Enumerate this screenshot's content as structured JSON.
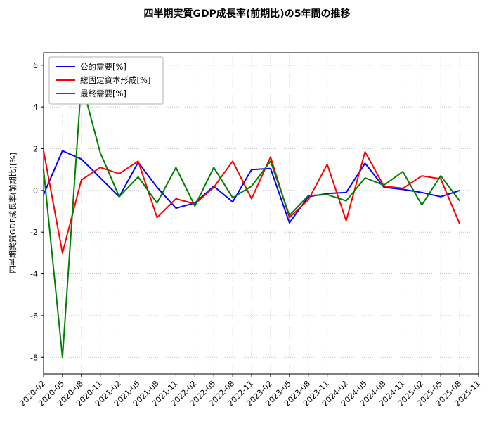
{
  "chart_data": {
    "type": "line",
    "title": "四半期実質GDP成長率(前期比)の5年間の推移",
    "xlabel": "",
    "ylabel": "四半期実質GDP成長率(前期比)[%]",
    "ylim": [
      -8.8,
      6.6
    ],
    "y_ticks": [
      6,
      4,
      2,
      0,
      -2,
      -4,
      -6,
      -8
    ],
    "grid": true,
    "legend_position": "upper left",
    "x_ticks": [
      "2020-02",
      "2020-05",
      "2020-08",
      "2020-11",
      "2021-02",
      "2021-05",
      "2021-08",
      "2021-11",
      "2022-02",
      "2022-05",
      "2022-08",
      "2022-11",
      "2023-02",
      "2023-05",
      "2023-08",
      "2023-11",
      "2024-02",
      "2024-05",
      "2024-08",
      "2024-11",
      "2025-02",
      "2025-05",
      "2025-08",
      "2025-11"
    ],
    "categories": [
      "2020-02",
      "2020-05",
      "2020-08",
      "2020-11",
      "2021-02",
      "2021-05",
      "2021-08",
      "2021-11",
      "2022-02",
      "2022-05",
      "2022-08",
      "2022-11",
      "2023-02",
      "2023-05",
      "2023-08",
      "2023-11",
      "2024-02",
      "2024-05",
      "2024-08",
      "2024-11",
      "2025-02",
      "2025-05",
      "2025-08"
    ],
    "series": [
      {
        "name": "公的需要[%]",
        "color": "#0000ff",
        "values": [
          -0.2,
          1.9,
          1.5,
          0.6,
          -0.3,
          1.35,
          0.15,
          -0.85,
          -0.6,
          0.2,
          -0.55,
          1.0,
          1.05,
          -1.55,
          -0.3,
          -0.15,
          -0.1,
          1.3,
          0.15,
          0.05,
          -0.1,
          -0.3,
          0.0
        ]
      },
      {
        "name": "総固定資本形成[%]",
        "color": "#ff0000",
        "values": [
          1.9,
          -3.0,
          0.5,
          1.1,
          0.8,
          1.4,
          -1.3,
          -0.4,
          -0.65,
          0.15,
          1.4,
          -0.4,
          1.6,
          -1.3,
          -0.45,
          1.25,
          -1.45,
          1.85,
          0.2,
          0.1,
          0.7,
          0.55,
          -1.6
        ]
      },
      {
        "name": "最終需要[%]",
        "color": "#008000",
        "values": [
          1.0,
          -8.0,
          5.2,
          1.8,
          -0.3,
          0.65,
          -0.6,
          1.1,
          -0.75,
          1.1,
          -0.35,
          0.2,
          1.4,
          -1.2,
          -0.25,
          -0.2,
          -0.5,
          0.6,
          0.25,
          0.9,
          -0.7,
          0.7,
          -0.5
        ]
      }
    ],
    "styling": {
      "grid_color": "#b8b8b8",
      "axis_color": "#000000",
      "line_width": 2
    }
  }
}
